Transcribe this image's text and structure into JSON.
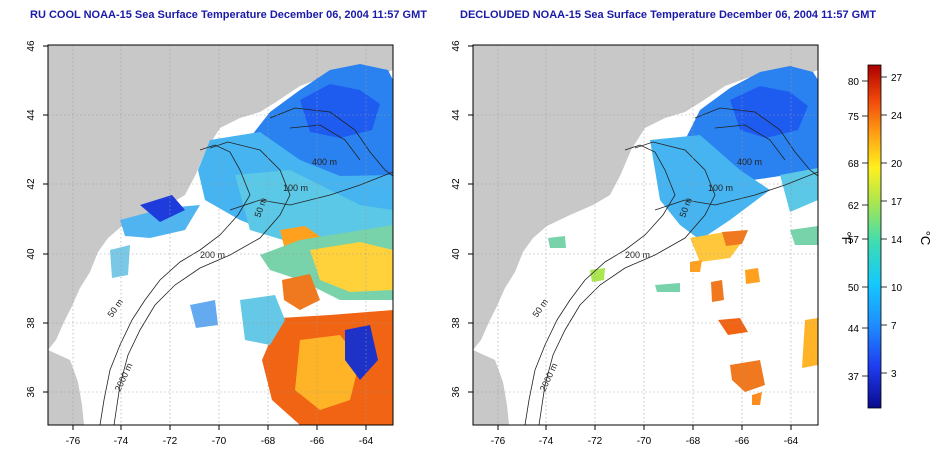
{
  "maps": [
    {
      "id": "left",
      "title": "RU COOL NOAA-15 Sea Surface Temperature December 06, 2004 11:57 GMT",
      "x_ticks": [
        "-76",
        "-74",
        "-72",
        "-70",
        "-68",
        "-66",
        "-64"
      ],
      "y_ticks": [
        "36",
        "38",
        "40",
        "42",
        "44",
        "46"
      ],
      "contour_labels": [
        "400 m",
        "100 m",
        "50 m",
        "200 m",
        "50 m",
        "2000 m"
      ]
    },
    {
      "id": "right",
      "title": "DECLOUDED NOAA-15 Sea Surface Temperature December 06, 2004 11:57 GMT",
      "x_ticks": [
        "-76",
        "-74",
        "-72",
        "-70",
        "-68",
        "-66",
        "-64"
      ],
      "y_ticks": [
        "36",
        "38",
        "40",
        "42",
        "44",
        "46"
      ],
      "contour_labels": [
        "400 m",
        "100 m",
        "50 m",
        "200 m",
        "50 m",
        "2000 m"
      ]
    }
  ],
  "colorbar": {
    "fahrenheit_label": "°F",
    "celsius_label": "°C",
    "fahrenheit_ticks": [
      "80",
      "75",
      "68",
      "62",
      "57",
      "50",
      "44",
      "37"
    ],
    "celsius_ticks": [
      "27",
      "24",
      "20",
      "17",
      "14",
      "10",
      "7",
      "3"
    ],
    "colors": [
      "#0a0a8c",
      "#1e3cf0",
      "#1e8cff",
      "#14c8ff",
      "#3cdcb4",
      "#aae650",
      "#fff01e",
      "#ffa014",
      "#f0460a",
      "#aa0000"
    ]
  }
}
